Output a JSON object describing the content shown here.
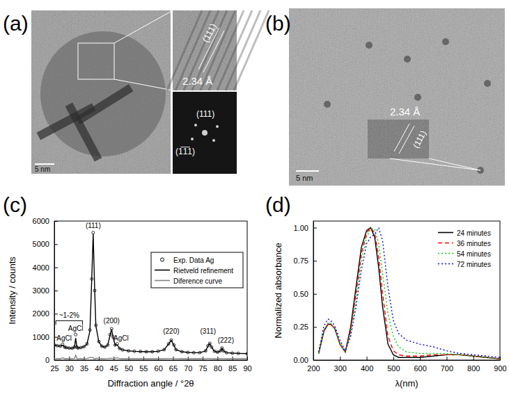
{
  "figure_panels": [
    {
      "label": "(a)",
      "scale_bar": "5 nm",
      "texts": [
        "(111)",
        "2.34 Å",
        "(111)",
        "(1̅1̅1)"
      ]
    },
    {
      "label": "(b)",
      "scale_bar": "5 nm",
      "texts": [
        "2.34 Å",
        "(111)"
      ]
    }
  ],
  "chart_data": [
    {
      "type": "line",
      "title": "(c)",
      "xlabel": "Diffraction angle / °2θ",
      "ylabel": "Intensity / counts",
      "x": [
        25,
        26,
        27,
        27.8,
        28.5,
        29,
        30,
        31,
        31.8,
        32.2,
        32.6,
        33,
        34,
        35,
        36,
        37,
        37.6,
        38.1,
        38.6,
        39,
        40,
        41,
        42,
        43,
        43.8,
        44.3,
        44.8,
        45.5,
        46.2,
        47,
        48,
        50,
        52,
        54,
        56,
        58,
        60,
        62,
        63.5,
        64.4,
        65.3,
        66,
        68,
        70,
        72,
        74,
        76,
        76.8,
        77.4,
        78,
        79,
        80,
        81,
        81.5,
        82,
        83,
        85,
        87,
        90
      ],
      "series": [
        {
          "name": "Exp. Data Ag",
          "type": "scatter",
          "marker": "circle",
          "color": "#000000",
          "values": [
            650,
            620,
            600,
            680,
            560,
            540,
            520,
            510,
            560,
            1100,
            560,
            520,
            540,
            580,
            700,
            1300,
            3500,
            5500,
            3000,
            1500,
            800,
            600,
            560,
            650,
            1100,
            1350,
            1000,
            650,
            700,
            500,
            440,
            400,
            380,
            370,
            360,
            360,
            380,
            450,
            700,
            860,
            650,
            450,
            360,
            330,
            320,
            320,
            400,
            620,
            720,
            560,
            380,
            340,
            400,
            520,
            400,
            320,
            300,
            290,
            280
          ]
        },
        {
          "name": "Rietveld refinement",
          "type": "line",
          "line_style": "solid",
          "color": "#000000",
          "values": [
            645,
            618,
            598,
            640,
            558,
            538,
            518,
            508,
            550,
            950,
            555,
            518,
            538,
            578,
            690,
            1250,
            3450,
            5450,
            3050,
            1480,
            790,
            598,
            555,
            640,
            1080,
            1330,
            990,
            640,
            660,
            495,
            438,
            398,
            378,
            368,
            358,
            358,
            378,
            445,
            690,
            850,
            640,
            445,
            358,
            328,
            318,
            318,
            395,
            610,
            710,
            555,
            378,
            338,
            395,
            510,
            395,
            318,
            298,
            288,
            278
          ]
        },
        {
          "name": "Diference curve",
          "type": "line",
          "line_style": "solid",
          "color": "#808080",
          "values": [
            65,
            62,
            62,
            100,
            62,
            62,
            62,
            62,
            70,
            210,
            65,
            62,
            62,
            62,
            70,
            110,
            110,
            110,
            10,
            80,
            70,
            62,
            65,
            70,
            80,
            80,
            70,
            70,
            100,
            65,
            62,
            62,
            62,
            62,
            62,
            62,
            62,
            65,
            70,
            70,
            70,
            65,
            62,
            62,
            62,
            62,
            65,
            70,
            70,
            65,
            62,
            62,
            65,
            70,
            65,
            62,
            62,
            62,
            62
          ]
        }
      ],
      "xlim": [
        25,
        90
      ],
      "xticks": [
        25,
        30,
        35,
        40,
        45,
        50,
        55,
        60,
        65,
        70,
        75,
        80,
        85,
        90
      ],
      "ylim": [
        0,
        6000
      ],
      "yticks": [
        0,
        1000,
        2000,
        3000,
        4000,
        5000,
        6000
      ],
      "legend": "upper right",
      "annotations": [
        {
          "text": "(111)",
          "x": 38.1,
          "y": 5700
        },
        {
          "text": "(200)",
          "x": 44.3,
          "y": 1600
        },
        {
          "text": "AgCl",
          "x": 47.5,
          "y": 850
        },
        {
          "text": "(220)",
          "x": 64.4,
          "y": 1150
        },
        {
          "text": "(311)",
          "x": 76.8,
          "y": 1150
        },
        {
          "text": "(222)",
          "x": 82.8,
          "y": 750
        },
        {
          "text": "AgCl",
          "x": 28.3,
          "y": 850
        },
        {
          "text": "AgCl",
          "x": 32.2,
          "y": 1250
        },
        {
          "text": "~1-2%",
          "x": 30,
          "y": 1700,
          "span": [
            25.5,
            34.5
          ]
        }
      ]
    },
    {
      "type": "line",
      "title": "(d)",
      "xlabel": "λ(nm)",
      "ylabel": "Normalized absorbance",
      "x": [
        220,
        240,
        255,
        265,
        280,
        300,
        320,
        340,
        360,
        380,
        400,
        415,
        430,
        445,
        460,
        480,
        500,
        520,
        550,
        600,
        650,
        700,
        750,
        800,
        850,
        900
      ],
      "series": [
        {
          "name": "24 minutes",
          "color": "#000000",
          "line_style": "solid",
          "values": [
            0.05,
            0.22,
            0.27,
            0.27,
            0.24,
            0.12,
            0.06,
            0.25,
            0.55,
            0.85,
            0.98,
            1.0,
            0.93,
            0.7,
            0.4,
            0.12,
            0.04,
            0.02,
            0.02,
            0.02,
            0.03,
            0.04,
            0.04,
            0.03,
            0.02,
            0.01
          ]
        },
        {
          "name": "36 minutes",
          "color": "#ff0000",
          "line_style": "dashed",
          "values": [
            0.05,
            0.22,
            0.27,
            0.27,
            0.24,
            0.12,
            0.06,
            0.22,
            0.5,
            0.8,
            0.96,
            1.0,
            0.96,
            0.78,
            0.5,
            0.18,
            0.07,
            0.04,
            0.03,
            0.03,
            0.04,
            0.04,
            0.04,
            0.03,
            0.02,
            0.01
          ]
        },
        {
          "name": "54 minutes",
          "color": "#00cc00",
          "line_style": "dotted",
          "values": [
            0.05,
            0.23,
            0.28,
            0.28,
            0.24,
            0.13,
            0.06,
            0.2,
            0.45,
            0.75,
            0.93,
            0.99,
            0.99,
            0.88,
            0.65,
            0.35,
            0.18,
            0.1,
            0.06,
            0.05,
            0.05,
            0.05,
            0.04,
            0.03,
            0.02,
            0.01
          ]
        },
        {
          "name": "72 minutes",
          "color": "#0000ff",
          "line_style": "dotted",
          "values": [
            0.06,
            0.26,
            0.31,
            0.3,
            0.26,
            0.15,
            0.07,
            0.18,
            0.4,
            0.68,
            0.88,
            0.93,
            0.95,
            1.0,
            0.9,
            0.55,
            0.3,
            0.2,
            0.15,
            0.12,
            0.1,
            0.07,
            0.05,
            0.04,
            0.03,
            0.02
          ]
        }
      ],
      "xlim": [
        200,
        900
      ],
      "xticks": [
        200,
        300,
        400,
        500,
        600,
        700,
        800,
        900
      ],
      "ylim": [
        0,
        1.05
      ],
      "yticks": [
        {
          "value": 0,
          "label": "0.00"
        },
        {
          "value": 0.25,
          "label": "0.25"
        },
        {
          "value": 0.5,
          "label": "0.50"
        },
        {
          "value": 0.75,
          "label": "0.75"
        },
        {
          "value": 1,
          "label": "1.00"
        }
      ],
      "legend": "upper right"
    }
  ]
}
